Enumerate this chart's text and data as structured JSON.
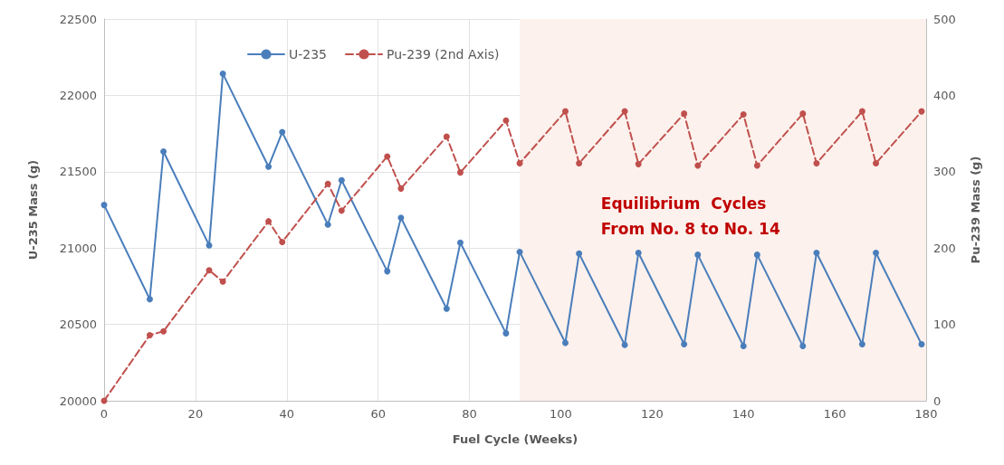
{
  "chart_data": {
    "type": "line",
    "xlabel": "Fuel Cycle (Weeks)",
    "ylabel": "U-235 Mass (g)",
    "y2label": "Pu-239 Mass (g)",
    "series": [
      {
        "name": "U-235",
        "color": "#4a7ebb",
        "line_style": "solid",
        "x": [
          0,
          10,
          13,
          23,
          26,
          36,
          39,
          49,
          52,
          62,
          65,
          75,
          78,
          88,
          91,
          101,
          104,
          114,
          117,
          127,
          130,
          140,
          143,
          153,
          156,
          166,
          169,
          179
        ],
        "values": [
          21282,
          20665,
          21632,
          21018,
          22142,
          21533,
          21759,
          21154,
          21444,
          20848,
          21198,
          20603,
          21035,
          20442,
          20975,
          20379,
          20964,
          20366,
          20969,
          20370,
          20956,
          20358,
          20956,
          20358,
          20969,
          20370,
          20969,
          20370
        ]
      },
      {
        "name": "Pu-239 (2nd Axis)",
        "color": "#c0504d",
        "line_style": "dashed",
        "axis": "y2",
        "x": [
          0,
          10,
          13,
          23,
          26,
          36,
          39,
          49,
          52,
          62,
          65,
          75,
          78,
          88,
          91,
          101,
          104,
          114,
          117,
          127,
          130,
          140,
          143,
          153,
          156,
          166,
          169,
          179
        ],
        "values": [
          0,
          86,
          91,
          171,
          156,
          235,
          208,
          284,
          249,
          320,
          278,
          346,
          299,
          367,
          311,
          379,
          311,
          379,
          310,
          376,
          308,
          375,
          308,
          376,
          311,
          379,
          311,
          379
        ]
      }
    ],
    "xlim": [
      0,
      180
    ],
    "xticks": [
      0,
      20,
      40,
      60,
      80,
      100,
      120,
      140,
      160,
      180
    ],
    "ylim": [
      20000,
      22500
    ],
    "yticks": [
      20000,
      20500,
      21000,
      21500,
      22000,
      22500
    ],
    "y2lim": [
      0,
      500
    ],
    "y2ticks": [
      0,
      100,
      200,
      300,
      400,
      500
    ],
    "bands": [
      {
        "axis": "x",
        "from": 91,
        "to": 180,
        "label": "Equilibrium  Cycles\nFrom No. 8 to No. 14",
        "color": "#fcf1ec"
      }
    ],
    "grid": true,
    "legend": "top",
    "marker": "circle"
  }
}
